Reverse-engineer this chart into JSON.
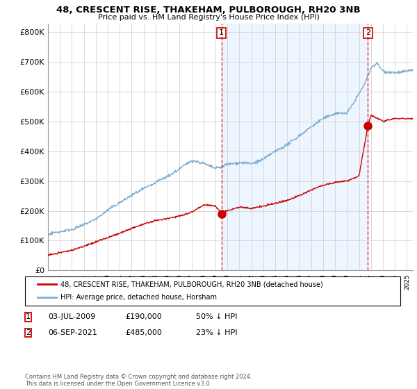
{
  "title": "48, CRESCENT RISE, THAKEHAM, PULBOROUGH, RH20 3NB",
  "subtitle": "Price paid vs. HM Land Registry's House Price Index (HPI)",
  "legend_label_red": "48, CRESCENT RISE, THAKEHAM, PULBOROUGH, RH20 3NB (detached house)",
  "legend_label_blue": "HPI: Average price, detached house, Horsham",
  "sale1_date": "03-JUL-2009",
  "sale1_price": "£190,000",
  "sale1_pct": "50% ↓ HPI",
  "sale2_date": "06-SEP-2021",
  "sale2_price": "£485,000",
  "sale2_pct": "23% ↓ HPI",
  "footnote": "Contains HM Land Registry data © Crown copyright and database right 2024.\nThis data is licensed under the Open Government Licence v3.0.",
  "ylim": [
    0,
    830000
  ],
  "yticks": [
    0,
    100000,
    200000,
    300000,
    400000,
    500000,
    600000,
    700000,
    800000
  ],
  "red_color": "#cc0000",
  "blue_color": "#7aadcf",
  "sale1_year": 2009.5,
  "sale2_year": 2021.75,
  "sale1_price_val": 190000,
  "sale2_price_val": 485000,
  "grid_color": "#cccccc",
  "shade_color": "#ddeeff"
}
